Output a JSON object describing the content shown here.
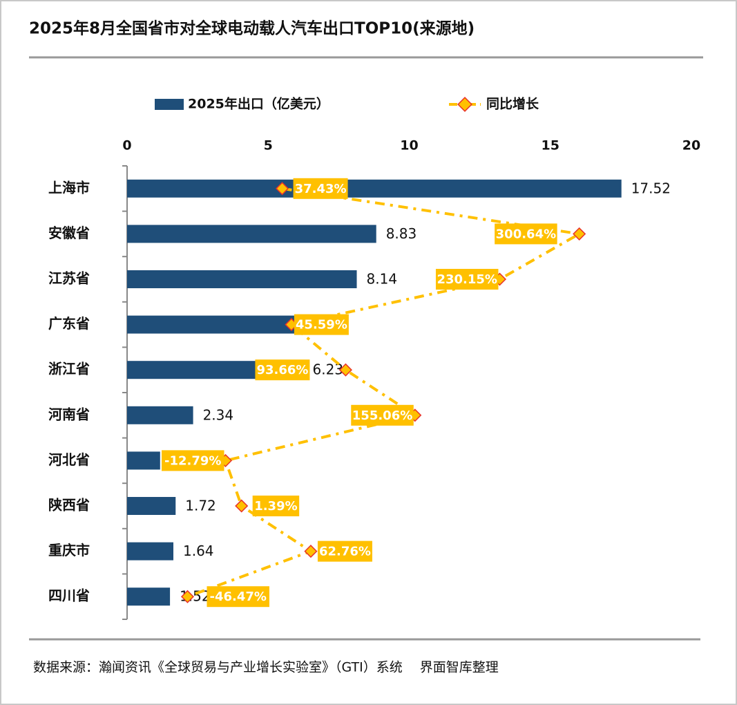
{
  "chart_data": {
    "type": "bar",
    "title": "2025年8月全国省市对全球电动载人汽车出口TOP10(来源地)",
    "source": "数据来源：瀚闻资讯《全球贸易与产业增长实验室》（GTI）系统　 界面智库整理",
    "categories": [
      "上海市",
      "安徽省",
      "江苏省",
      "广东省",
      "浙江省",
      "河南省",
      "河北省",
      "陕西省",
      "重庆市",
      "四川省"
    ],
    "series": [
      {
        "name": "2025年出口（亿美元）",
        "type": "bar",
        "color": "#1f4e79",
        "values": [
          17.52,
          8.83,
          8.14,
          6.22,
          6.23,
          2.34,
          1.17,
          1.72,
          1.64,
          1.52
        ]
      },
      {
        "name": "同比增长",
        "type": "line",
        "axis": "x2",
        "color": "#ffc000",
        "marker_color": "#e8322a",
        "values": [
          37.43,
          300.64,
          230.15,
          45.59,
          93.66,
          155.06,
          -12.79,
          1.39,
          62.76,
          -46.47
        ],
        "value_labels": [
          "37.43%",
          "300.64%",
          "230.15%",
          "45.59%",
          "93.66%",
          "155.06%",
          "-12.79%",
          "1.39%",
          "62.76%",
          "-46.47%"
        ]
      }
    ],
    "xlim": [
      0,
      20
    ],
    "xticks": [
      0,
      5,
      10,
      15,
      20
    ],
    "x2lim": [
      -100,
      400
    ]
  }
}
